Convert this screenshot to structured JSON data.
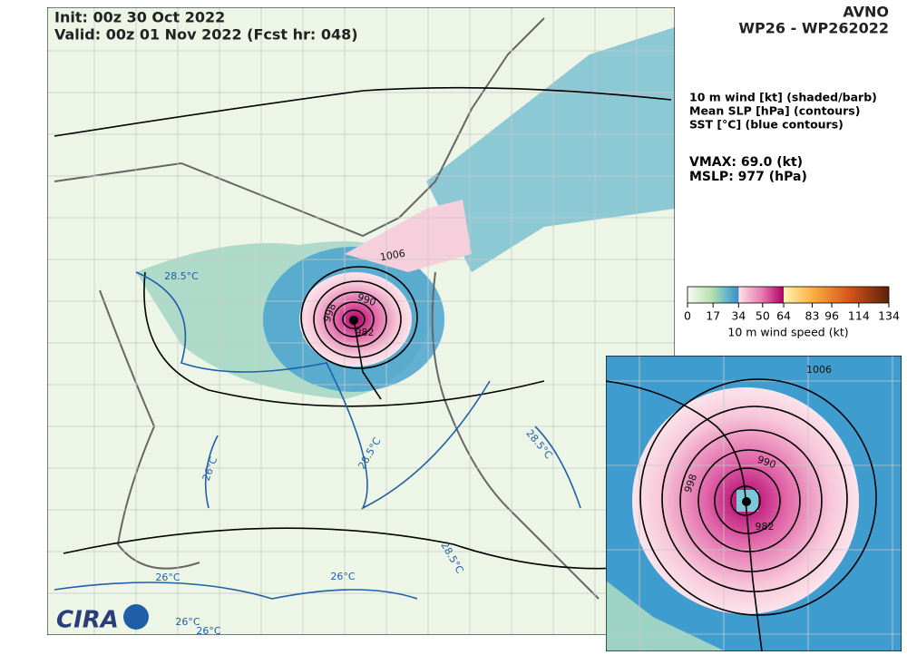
{
  "header": {
    "init": "Init:   00z 30 Oct 2022",
    "valid": "Valid: 00z 01 Nov 2022 (Fcst hr: 048)",
    "model": "AVNO",
    "storm": "WP26 - WP262022"
  },
  "legend": {
    "lines": [
      "10 m wind [kt] (shaded/barb)",
      "Mean SLP [hPa] (contours)",
      "SST [°C] (blue contours)"
    ],
    "vmax": "VMAX:  69.0 (kt)",
    "mslp": "MSLP:  977 (hPa)"
  },
  "colorbar": {
    "lim": [
      0,
      134
    ],
    "ticks": [
      0,
      17,
      34,
      50,
      64,
      83,
      96,
      114,
      134
    ],
    "label": "10 m wind speed (kt)"
  },
  "map_labels": [
    "1006",
    "990",
    "998",
    "982",
    "28.5°C",
    "28.5°C",
    "28.5°C",
    "28.5°C",
    "26°C",
    "26°C",
    "26°C",
    "26°C",
    "26°C"
  ],
  "inset_labels": [
    "1006",
    "990",
    "998",
    "982"
  ],
  "logo": "CIRA"
}
